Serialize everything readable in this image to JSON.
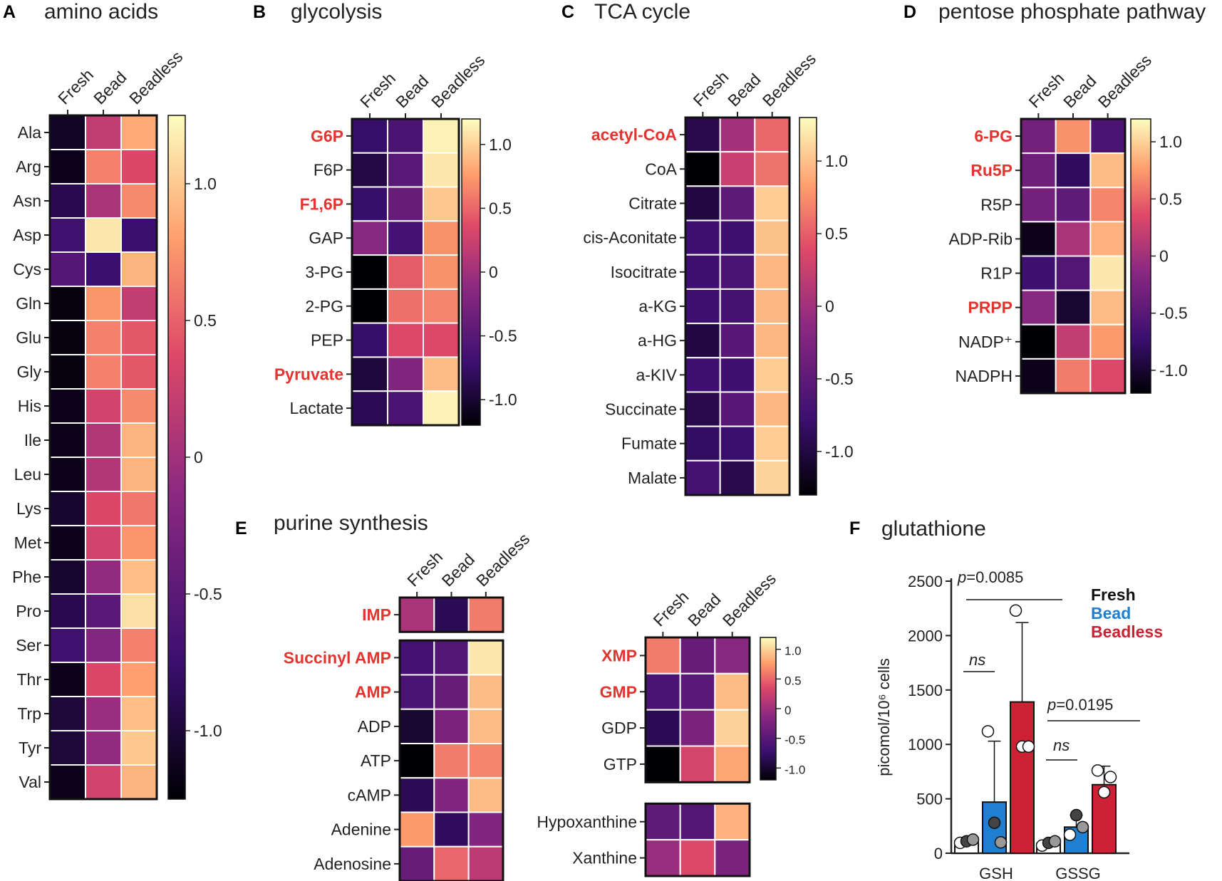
{
  "colors": {
    "highlight": "#e3342f",
    "fresh": "#ffffff",
    "bead": "#1f7fd0",
    "beadless": "#cc2233",
    "colormap": [
      "#000004",
      "#1b0c41",
      "#4a0c6b",
      "#781c6d",
      "#a52c60",
      "#cf4446",
      "#ed6925",
      "#fb9b06",
      "#f7d13d",
      "#fcffa4"
    ],
    "colormap_used": "magma-like: #000004 -> #3b0f70 -> #8c2981 -> #de4968 -> #fe9f6d -> #fcfdbf"
  },
  "chart_data": [
    {
      "panel": "A",
      "title": "amino acids",
      "type": "heatmap",
      "columns": [
        "Fresh",
        "Bead",
        "Beadless"
      ],
      "rows": [
        "Ala",
        "Arg",
        "Asn",
        "Asp",
        "Cys",
        "Gln",
        "Glu",
        "Gly",
        "His",
        "Ile",
        "Leu",
        "Lys",
        "Met",
        "Phe",
        "Pro",
        "Ser",
        "Thr",
        "Trp",
        "Tyr",
        "Val"
      ],
      "highlight_rows": [],
      "values": [
        [
          -1.1,
          0.2,
          0.85
        ],
        [
          -1.15,
          0.65,
          0.35
        ],
        [
          -0.9,
          0.05,
          0.7
        ],
        [
          -0.7,
          1.15,
          -0.75
        ],
        [
          -0.55,
          -0.75,
          0.9
        ],
        [
          -1.2,
          0.75,
          0.2
        ],
        [
          -1.2,
          0.65,
          0.45
        ],
        [
          -1.2,
          0.65,
          0.45
        ],
        [
          -1.15,
          0.3,
          0.7
        ],
        [
          -1.15,
          0.1,
          0.9
        ],
        [
          -1.15,
          0.1,
          0.9
        ],
        [
          -1.05,
          0.35,
          0.6
        ],
        [
          -1.15,
          0.3,
          0.75
        ],
        [
          -1.05,
          -0.1,
          0.95
        ],
        [
          -0.9,
          -0.5,
          1.1
        ],
        [
          -0.7,
          -0.2,
          0.65
        ],
        [
          -1.15,
          0.35,
          0.8
        ],
        [
          -1.0,
          -0.05,
          0.95
        ],
        [
          -1.0,
          -0.1,
          1.0
        ],
        [
          -1.15,
          0.3,
          0.9
        ]
      ],
      "colorbar": {
        "ticks": [
          "1.0",
          "0.5",
          "0",
          "-0.5",
          "-1.0"
        ],
        "range": [
          -1.25,
          1.25
        ]
      }
    },
    {
      "panel": "B",
      "title": "glycolysis",
      "type": "heatmap",
      "columns": [
        "Fresh",
        "Bead",
        "Beadless"
      ],
      "rows": [
        "G6P",
        "F6P",
        "F1,6P",
        "GAP",
        "3-PG",
        "2-PG",
        "PEP",
        "Pyruvate",
        "Lactate"
      ],
      "highlight_rows": [
        "G6P",
        "F1,6P",
        "Pyruvate"
      ],
      "values": [
        [
          -0.75,
          -0.6,
          1.15
        ],
        [
          -0.9,
          -0.5,
          1.1
        ],
        [
          -0.75,
          -0.4,
          0.95
        ],
        [
          -0.15,
          -0.65,
          0.7
        ],
        [
          -1.25,
          0.45,
          0.7
        ],
        [
          -1.25,
          0.55,
          0.65
        ],
        [
          -0.75,
          0.35,
          0.35
        ],
        [
          -0.95,
          -0.2,
          0.9
        ],
        [
          -0.85,
          -0.6,
          1.15
        ]
      ],
      "colorbar": {
        "ticks": [
          "1.0",
          "0.5",
          "0",
          "-0.5",
          "-1.0"
        ],
        "range": [
          -1.2,
          1.2
        ]
      }
    },
    {
      "panel": "C",
      "title": "TCA cycle",
      "type": "heatmap",
      "columns": [
        "Fresh",
        "Bead",
        "Beadless"
      ],
      "rows": [
        "acetyl-CoA",
        "CoA",
        "Citrate",
        "cis-Aconitate",
        "Isocitrate",
        "a-KG",
        "a-HG",
        "a-KIV",
        "Succinate",
        "Fumate",
        "Malate"
      ],
      "highlight_rows": [
        "acetyl-CoA"
      ],
      "values": [
        [
          -0.95,
          0.0,
          0.55
        ],
        [
          -1.3,
          0.25,
          0.6
        ],
        [
          -1.0,
          -0.5,
          1.05
        ],
        [
          -0.75,
          -0.75,
          1.0
        ],
        [
          -0.75,
          -0.65,
          0.95
        ],
        [
          -0.75,
          -0.7,
          0.95
        ],
        [
          -1.0,
          -0.55,
          0.95
        ],
        [
          -0.75,
          -0.75,
          1.05
        ],
        [
          -0.95,
          -0.55,
          0.95
        ],
        [
          -0.85,
          -0.8,
          1.05
        ],
        [
          -0.7,
          -0.95,
          1.1
        ]
      ],
      "colorbar": {
        "ticks": [
          "1.0",
          "0.5",
          "0",
          "-0.5",
          "-1.0"
        ],
        "range": [
          -1.3,
          1.3
        ]
      }
    },
    {
      "panel": "D",
      "title": "pentose phosphate pathway",
      "type": "heatmap",
      "columns": [
        "Fresh",
        "Bead",
        "Beadless"
      ],
      "rows": [
        "6-PG",
        "Ru5P",
        "R5P",
        "ADP-Rib",
        "R1P",
        "PRPP",
        "NADP⁺",
        "NADPH"
      ],
      "highlight_rows": [
        "6-PG",
        "Ru5P",
        "PRPP"
      ],
      "values": [
        [
          -0.3,
          0.7,
          -0.6
        ],
        [
          -0.35,
          -0.8,
          0.9
        ],
        [
          -0.3,
          -0.45,
          0.65
        ],
        [
          -1.1,
          0.05,
          0.85
        ],
        [
          -0.7,
          -0.55,
          1.1
        ],
        [
          -0.15,
          -1.0,
          0.9
        ],
        [
          -1.3,
          0.2,
          0.75
        ],
        [
          -1.1,
          0.6,
          0.35
        ]
      ],
      "colorbar": {
        "ticks": [
          "1.0",
          "0.5",
          "0",
          "-0.5",
          "-1.0"
        ],
        "range": [
          -1.2,
          1.2
        ]
      }
    },
    {
      "panel": "E",
      "title": "purine synthesis",
      "type": "heatmap",
      "columns": [
        "Fresh",
        "Bead",
        "Beadless"
      ],
      "rows": [
        "IMP",
        "Succinyl AMP",
        "AMP",
        "ADP",
        "ATP",
        "cAMP",
        "Adenine",
        "Adenosine"
      ],
      "highlight_rows": [
        "IMP",
        "Succinyl AMP",
        "AMP"
      ],
      "values": [
        [
          0.05,
          -0.85,
          0.6
        ],
        [
          -0.65,
          -0.55,
          1.1
        ],
        [
          -0.6,
          -0.4,
          0.9
        ],
        [
          -1.0,
          -0.25,
          0.9
        ],
        [
          -1.3,
          0.6,
          0.65
        ],
        [
          -0.85,
          -0.2,
          0.9
        ],
        [
          0.75,
          -0.8,
          -0.2
        ],
        [
          -0.4,
          0.5,
          0.15
        ]
      ],
      "colorbar": null
    },
    {
      "panel": "E2",
      "type": "heatmap",
      "columns": [
        "Fresh",
        "Bead",
        "Beadless"
      ],
      "rows": [
        "XMP",
        "GMP",
        "GDP",
        "GTP",
        "Hypoxanthine",
        "Xanthine"
      ],
      "highlight_rows": [
        "XMP",
        "GMP"
      ],
      "values": [
        [
          0.6,
          -0.4,
          -0.15
        ],
        [
          -0.6,
          -0.5,
          0.9
        ],
        [
          -0.85,
          -0.25,
          1.0
        ],
        [
          -1.3,
          0.3,
          0.8
        ],
        [
          -0.45,
          -0.55,
          0.85
        ],
        [
          -0.05,
          0.35,
          -0.25
        ]
      ],
      "colorbar": {
        "ticks": [
          "1.0",
          "0.5",
          "0",
          "-0.5",
          "-1.0"
        ],
        "range": [
          -1.2,
          1.2
        ]
      }
    },
    {
      "panel": "F",
      "title": "glutathione",
      "type": "bar",
      "categories": [
        "GSH",
        "GSSG"
      ],
      "ylabel": "picomol/10⁶ cells",
      "ylim": [
        0,
        2500
      ],
      "yticks": [
        "0",
        "500",
        "1000",
        "1500",
        "2000",
        "2500"
      ],
      "legend": [
        "Fresh",
        "Bead",
        "Beadless"
      ],
      "series": [
        {
          "name": "Fresh",
          "values": [
            110,
            90
          ],
          "err": [
            0,
            0
          ],
          "points": [
            [
              95,
              110,
              125
            ],
            [
              70,
              95,
              110
            ]
          ]
        },
        {
          "name": "Bead",
          "values": [
            470,
            240
          ],
          "err": [
            560,
            110
          ],
          "points": [
            [
              1120,
              280,
              100
            ],
            [
              170,
              350,
              240
            ]
          ]
        },
        {
          "name": "Beadless",
          "values": [
            1390,
            630
          ],
          "err": [
            730,
            170
          ],
          "points": [
            [
              2230,
              980,
              980
            ],
            [
              760,
              560,
              700
            ]
          ]
        }
      ],
      "annotations": [
        "p=0.0085",
        "ns",
        "p=0.0195",
        "ns"
      ]
    }
  ]
}
